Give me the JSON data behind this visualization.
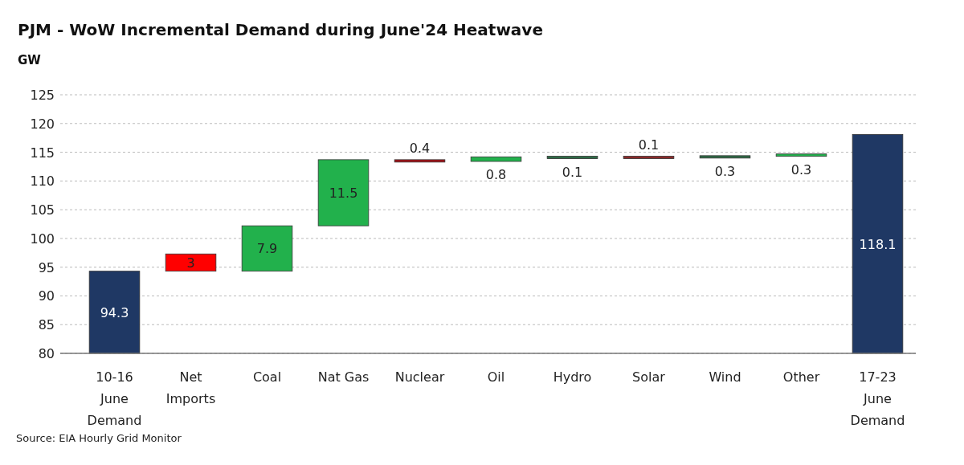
{
  "chart_data": {
    "type": "bar",
    "title": "PJM - WoW Incremental Demand during June'24 Heatwave",
    "ylabel": "GW",
    "categories": [
      "10-16 June Demand",
      "Net Imports",
      "Coal",
      "Nat Gas",
      "Nuclear",
      "Oil",
      "Hydro",
      "Solar",
      "Wind",
      "Other",
      "17-23 June Demand"
    ],
    "values": [
      94.3,
      3,
      7.9,
      11.5,
      0.4,
      0.8,
      0.1,
      0.1,
      0.3,
      0.3,
      118.1
    ],
    "base": [
      null,
      94.3,
      94.3,
      102.2,
      113.3,
      113.4,
      114.2,
      114.2,
      114.1,
      114.4,
      null
    ],
    "colors": [
      "#1f3864",
      "#ff0000",
      "#22b14c",
      "#22b14c",
      "#a50f15",
      "#22b14c",
      "#2e6b46",
      "#8b2a2a",
      "#2e6b46",
      "#22b14c",
      "#1f3864"
    ],
    "ylim": [
      80,
      125
    ],
    "yticks": [
      80,
      85,
      90,
      95,
      100,
      105,
      110,
      115,
      120,
      125
    ],
    "grid": "y",
    "data_labels": true,
    "annotations": [
      "Source: EIA Hourly Grid Monitor"
    ]
  }
}
